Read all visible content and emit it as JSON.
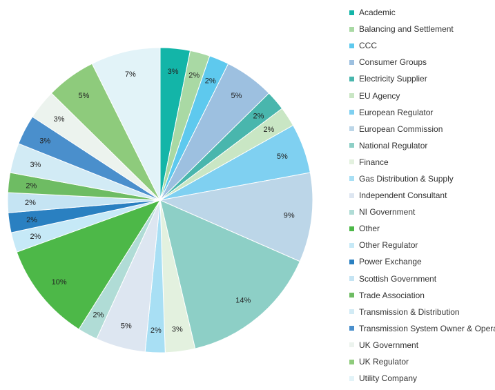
{
  "chart_data": {
    "type": "pie",
    "start_angle_deg": 0,
    "direction": "clockwise",
    "legend_position": "right",
    "slices": [
      {
        "name": "Academic",
        "value": 3,
        "label": "3%",
        "color": "#13b5a8"
      },
      {
        "name": "Balancing and Settlement",
        "value": 2,
        "label": "2%",
        "color": "#a9d9a4"
      },
      {
        "name": "CCC",
        "value": 2,
        "label": "2%",
        "color": "#5ec9ee"
      },
      {
        "name": "Consumer Groups",
        "value": 5,
        "label": "5%",
        "color": "#9dc0e0"
      },
      {
        "name": "Electricity Supplier",
        "value": 2,
        "label": "2%",
        "color": "#49b6ad"
      },
      {
        "name": "EU Agency",
        "value": 2,
        "label": "2%",
        "color": "#c9e6c4"
      },
      {
        "name": "European Regulator",
        "value": 5,
        "label": "5%",
        "color": "#7fd0f1"
      },
      {
        "name": "European Commission",
        "value": 9,
        "label": "9%",
        "color": "#bcd6e8"
      },
      {
        "name": "National Regulator",
        "value": 14,
        "label": "14%",
        "color": "#8dcfc6"
      },
      {
        "name": "Finance",
        "value": 3,
        "label": "3%",
        "color": "#e3f1df"
      },
      {
        "name": "Gas Distribution & Supply",
        "value": 2,
        "label": "2%",
        "color": "#a8dff4"
      },
      {
        "name": "Independent Consultant",
        "value": 5,
        "label": "5%",
        "color": "#dde6f1"
      },
      {
        "name": "NI Government",
        "value": 2,
        "label": "2%",
        "color": "#b0dcd6"
      },
      {
        "name": "Other",
        "value": 10,
        "label": "10%",
        "color": "#4db848"
      },
      {
        "name": "Other Regulator",
        "value": 2,
        "label": "2%",
        "color": "#c6e9f7"
      },
      {
        "name": "Power Exchange",
        "value": 2,
        "label": "2%",
        "color": "#2a80c1"
      },
      {
        "name": "Scottish Government",
        "value": 2,
        "label": "2%",
        "color": "#c5e4f3"
      },
      {
        "name": "Trade Association",
        "value": 2,
        "label": "2%",
        "color": "#6ebc63"
      },
      {
        "name": "Transmission & Distribution",
        "value": 3,
        "label": "3%",
        "color": "#d2ebf5"
      },
      {
        "name": "Transmission System Owner & Operator",
        "value": 3,
        "label": "3%",
        "color": "#4a8fcc"
      },
      {
        "name": "UK Government",
        "value": 3,
        "label": "3%",
        "color": "#ecf3ee"
      },
      {
        "name": "UK Regulator",
        "value": 5,
        "label": "5%",
        "color": "#8ecb7c"
      },
      {
        "name": "Utility Company",
        "value": 7,
        "label": "7%",
        "color": "#e2f3f8"
      }
    ],
    "slice_order": [
      "Academic",
      "Balancing and Settlement",
      "CCC",
      "Consumer Groups",
      "Electricity Supplier",
      "EU Agency",
      "European Regulator",
      "European Commission",
      "National Regulator",
      "Finance",
      "Gas Distribution & Supply",
      "Independent Consultant",
      "NI Government",
      "Other",
      "Other Regulator",
      "Power Exchange",
      "Scottish Government",
      "Trade Association",
      "Transmission & Distribution",
      "Transmission System Owner & Operator",
      "UK Government",
      "UK Regulator",
      "Utility Company"
    ]
  }
}
